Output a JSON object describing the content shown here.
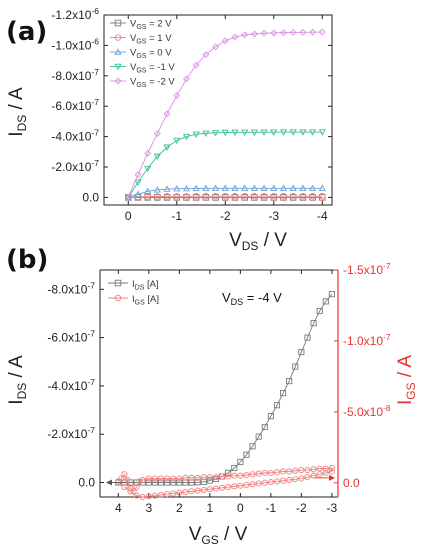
{
  "chart_data": [
    {
      "panel": "(a)",
      "type": "line",
      "title": "",
      "xlabel": {
        "main": "V",
        "sub": "DS",
        "tail": " / V"
      },
      "ylabel": {
        "main": "I",
        "sub": "DS",
        "tail": " / A"
      },
      "x_ticks": [
        "0",
        "-1",
        "-2",
        "-3",
        "-4"
      ],
      "y_ticks": [
        "0.0",
        "-2.0x10",
        "-4.0x10",
        "-6.0x10",
        "-8.0x10",
        "-1.0x10",
        "-1.2x10"
      ],
      "y_tick_exps": [
        "",
        "-7",
        "-7",
        "-7",
        "-7",
        "-6",
        "-6"
      ],
      "xlim": [
        0.5,
        -4.2
      ],
      "ylim": [
        5e-08,
        -1.2e-06
      ],
      "legend_position": "top-left",
      "series": [
        {
          "name": "V_GS = 2 V",
          "name_main": "V",
          "name_sub": "GS",
          "name_tail": " = 2 V",
          "color": "#7a7a7a",
          "marker": "square",
          "x": [
            0,
            -0.2,
            -0.4,
            -0.6,
            -0.8,
            -1.0,
            -1.2,
            -1.4,
            -1.6,
            -1.8,
            -2.0,
            -2.2,
            -2.4,
            -2.6,
            -2.8,
            -3.0,
            -3.2,
            -3.4,
            -3.6,
            -3.8,
            -4.0
          ],
          "y": [
            0,
            0,
            0,
            0,
            0,
            0,
            0,
            0,
            0,
            0,
            0,
            0,
            0,
            0,
            0,
            0,
            0,
            0,
            0,
            0,
            0
          ]
        },
        {
          "name": "V_GS = 1 V",
          "name_main": "V",
          "name_sub": "GS",
          "name_tail": " = 1 V",
          "color": "#f08080",
          "marker": "circle",
          "x": [
            0,
            -0.2,
            -0.4,
            -0.6,
            -0.8,
            -1.0,
            -1.2,
            -1.4,
            -1.6,
            -1.8,
            -2.0,
            -2.2,
            -2.4,
            -2.6,
            -2.8,
            -3.0,
            -3.2,
            -3.4,
            -3.6,
            -3.8,
            -4.0
          ],
          "y": [
            0,
            -3e-09,
            -5e-09,
            -6e-09,
            -7e-09,
            -7e-09,
            -7e-09,
            -8e-09,
            -8e-09,
            -8e-09,
            -8e-09,
            -8e-09,
            -8e-09,
            -8e-09,
            -8e-09,
            -8e-09,
            -8e-09,
            -8e-09,
            -8e-09,
            -8e-09,
            -8e-09
          ]
        },
        {
          "name": "V_GS = 0 V",
          "name_main": "V",
          "name_sub": "GS",
          "name_tail": " = 0 V",
          "color": "#6a9fd8",
          "marker": "triangle-up",
          "x": [
            0,
            -0.2,
            -0.4,
            -0.6,
            -0.8,
            -1.0,
            -1.2,
            -1.4,
            -1.6,
            -1.8,
            -2.0,
            -2.2,
            -2.4,
            -2.6,
            -2.8,
            -3.0,
            -3.2,
            -3.4,
            -3.6,
            -3.8,
            -4.0
          ],
          "y": [
            0,
            -2e-08,
            -4e-08,
            -5e-08,
            -5.5e-08,
            -5.7e-08,
            -5.8e-08,
            -5.9e-08,
            -6e-08,
            -6e-08,
            -6e-08,
            -6e-08,
            -6e-08,
            -6e-08,
            -6e-08,
            -6e-08,
            -6e-08,
            -6e-08,
            -6e-08,
            -6e-08,
            -6e-08
          ]
        },
        {
          "name": "V_GS = -1 V",
          "name_main": "V",
          "name_sub": "GS",
          "name_tail": " = -1 V",
          "color": "#3fbf8f",
          "marker": "triangle-down",
          "x": [
            0,
            -0.2,
            -0.4,
            -0.6,
            -0.8,
            -1.0,
            -1.2,
            -1.4,
            -1.6,
            -1.8,
            -2.0,
            -2.2,
            -2.4,
            -2.6,
            -2.8,
            -3.0,
            -3.2,
            -3.4,
            -3.6,
            -3.8,
            -4.0
          ],
          "y": [
            0,
            -1e-07,
            -1.9e-07,
            -2.7e-07,
            -3.3e-07,
            -3.75e-07,
            -4e-07,
            -4.15e-07,
            -4.22e-07,
            -4.25e-07,
            -4.27e-07,
            -4.28e-07,
            -4.28e-07,
            -4.28e-07,
            -4.29e-07,
            -4.29e-07,
            -4.3e-07,
            -4.3e-07,
            -4.3e-07,
            -4.3e-07,
            -4.3e-07
          ]
        },
        {
          "name": "V_GS = -2 V",
          "name_main": "V",
          "name_sub": "GS",
          "name_tail": " = -2 V",
          "color": "#d98ee8",
          "marker": "diamond",
          "x": [
            0,
            -0.2,
            -0.4,
            -0.6,
            -0.8,
            -1.0,
            -1.2,
            -1.4,
            -1.6,
            -1.8,
            -2.0,
            -2.2,
            -2.4,
            -2.6,
            -2.8,
            -3.0,
            -3.2,
            -3.4,
            -3.6,
            -3.8,
            -4.0
          ],
          "y": [
            0,
            -1.5e-07,
            -2.9e-07,
            -4.2e-07,
            -5.5e-07,
            -6.7e-07,
            -7.8e-07,
            -8.7e-07,
            -9.4e-07,
            -9.9e-07,
            -1.03e-06,
            -1.055e-06,
            -1.07e-06,
            -1.075e-06,
            -1.08e-06,
            -1.082e-06,
            -1.084e-06,
            -1.085e-06,
            -1.086e-06,
            -1.087e-06,
            -1.088e-06
          ]
        }
      ]
    },
    {
      "panel": "(b)",
      "type": "scatter",
      "title": "",
      "annotation": {
        "main": "V",
        "sub": "DS",
        "tail": " = -4 V"
      },
      "xlabel": {
        "main": "V",
        "sub": "GS",
        "tail": " / V"
      },
      "ylabel_left": {
        "main": "I",
        "sub": "DS",
        "tail": " / A"
      },
      "ylabel_right": {
        "main": "I",
        "sub": "GS",
        "tail": " / A"
      },
      "x_ticks": [
        "4",
        "3",
        "2",
        "1",
        "0",
        "-1",
        "-2",
        "-3"
      ],
      "y_left_ticks": [
        "0.0",
        "-2.0x10",
        "-4.0x10",
        "-6.0x10",
        "-8.0x10"
      ],
      "y_left_exps": [
        "",
        "-7",
        "-7",
        "-7",
        "-7"
      ],
      "y_right_ticks": [
        "0.0",
        "-5.0x10",
        "-1.0x10",
        "-1.5x10"
      ],
      "y_right_exps": [
        "",
        "-8",
        "-7",
        "-7"
      ],
      "xlim": [
        4.6,
        -3.2
      ],
      "ylim_left": [
        6e-08,
        -8.8e-07
      ],
      "ylim_right": [
        1e-08,
        -1.5e-07
      ],
      "legend_position": "top-left",
      "series": [
        {
          "name": "I_DS [A]",
          "name_main": "I",
          "name_sub": "DS",
          "name_tail": " [A]",
          "axis": "left",
          "color": "#7a7a7a",
          "marker": "square",
          "x": [
            4.0,
            3.8,
            3.6,
            3.4,
            3.2,
            3.0,
            2.8,
            2.6,
            2.4,
            2.2,
            2.0,
            1.8,
            1.6,
            1.4,
            1.2,
            1.0,
            0.8,
            0.6,
            0.4,
            0.2,
            0.0,
            -0.2,
            -0.4,
            -0.6,
            -0.8,
            -1.0,
            -1.2,
            -1.4,
            -1.6,
            -1.8,
            -2.0,
            -2.2,
            -2.4,
            -2.6,
            -2.8,
            -3.0
          ],
          "y": [
            0,
            0,
            0,
            0,
            0,
            0,
            0,
            0,
            0,
            0,
            0,
            0,
            0,
            -1e-09,
            -3e-09,
            -8e-09,
            -1.5e-08,
            -2.5e-08,
            -4e-08,
            -6e-08,
            -8.5e-08,
            -1.15e-07,
            -1.5e-07,
            -1.9e-07,
            -2.3e-07,
            -2.75e-07,
            -3.2e-07,
            -3.7e-07,
            -4.2e-07,
            -4.8e-07,
            -5.4e-07,
            -6e-07,
            -6.6e-07,
            -7.1e-07,
            -7.5e-07,
            -7.8e-07
          ]
        },
        {
          "name": "I_GS [A]",
          "name_main": "I",
          "name_sub": "GS",
          "name_tail": " [A]",
          "axis": "right",
          "color": "#f08080",
          "marker": "circle",
          "x": [
            4.0,
            3.9,
            3.8,
            3.7,
            3.6,
            3.5,
            3.4,
            3.3,
            3.2,
            3.0,
            2.8,
            2.6,
            2.4,
            2.2,
            2.0,
            1.8,
            1.6,
            1.4,
            1.2,
            1.0,
            0.8,
            0.6,
            0.4,
            0.2,
            0.0,
            -0.2,
            -0.4,
            -0.6,
            -0.8,
            -1.0,
            -1.2,
            -1.4,
            -1.6,
            -1.8,
            -2.0,
            -2.2,
            -2.4,
            -2.6,
            -2.8,
            -3.0,
            -3.0,
            -2.8,
            -2.6,
            -2.4,
            -2.2,
            -2.0,
            -1.8,
            -1.6,
            -1.4,
            -1.2,
            -1.0,
            -0.8,
            -0.6,
            -0.4,
            -0.2,
            0.0,
            0.2,
            0.4,
            0.6,
            0.8,
            1.0,
            1.2,
            1.4,
            1.6,
            1.8,
            2.0,
            2.2,
            2.4,
            2.6,
            2.8,
            3.0,
            3.2,
            3.4,
            3.6,
            3.8
          ],
          "y": [
            -1e-09,
            -3e-09,
            -6e-09,
            -2e-09,
            4e-09,
            6e-09,
            3e-09,
            -1e-09,
            -2e-09,
            -3e-09,
            -3e-09,
            -3e-09,
            -3e-09,
            -3e-09,
            -3e-09,
            -3.5e-09,
            -3.5e-09,
            -3.5e-09,
            -4e-09,
            -4e-09,
            -4e-09,
            -4.5e-09,
            -4.5e-09,
            -5e-09,
            -5e-09,
            -5.5e-09,
            -6e-09,
            -6.5e-09,
            -7e-09,
            -7e-09,
            -7.5e-09,
            -8e-09,
            -8e-09,
            -8.5e-09,
            -9e-09,
            -9e-09,
            -9.5e-09,
            -1e-08,
            -1e-08,
            -1.05e-08,
            -8e-09,
            -7e-09,
            -6e-09,
            -5e-09,
            -4e-09,
            -3e-09,
            -2.5e-09,
            -2e-09,
            -1.5e-09,
            -1e-09,
            -5e-10,
            0,
            5e-10,
            1e-09,
            1.5e-09,
            2e-09,
            2.5e-09,
            3e-09,
            3.5e-09,
            4e-09,
            4.5e-09,
            5e-09,
            5.5e-09,
            6e-09,
            6.5e-09,
            7e-09,
            7.5e-09,
            8e-09,
            8.5e-09,
            9e-09,
            9.5e-09,
            1e-08,
            9e-09,
            6e-09,
            3e-09
          ]
        }
      ]
    }
  ],
  "colors": {
    "axis": "#222222",
    "right_axis": "#e8332f",
    "arrow": "#555555"
  }
}
